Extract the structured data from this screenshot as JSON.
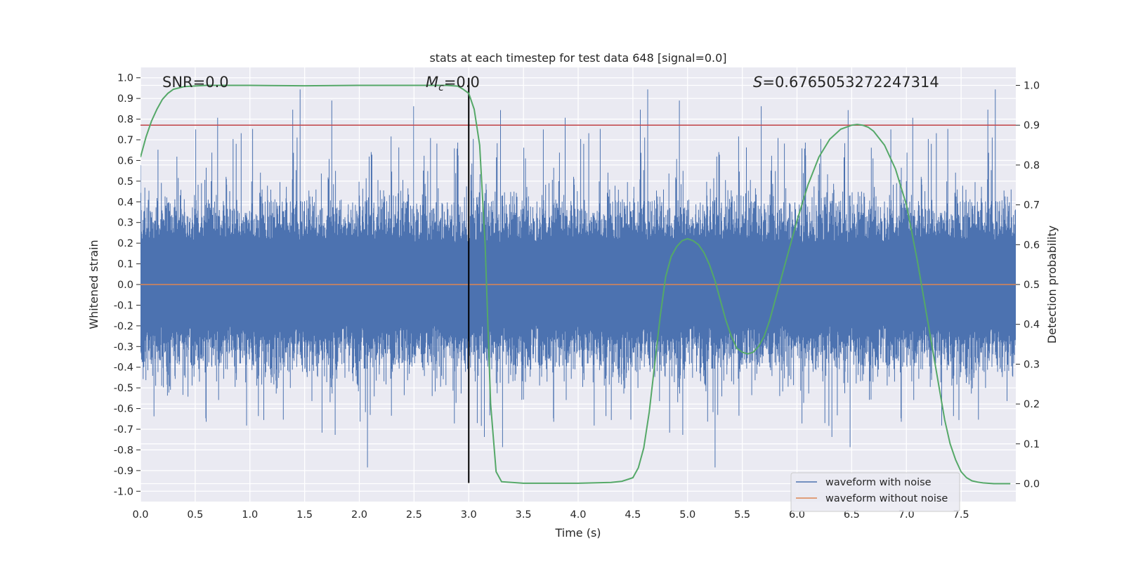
{
  "chart_data": {
    "type": "line",
    "title": "stats at each timestep for test data 648 [signal=0.0]",
    "xlabel": "Time (s)",
    "ylabel": "Whitened strain",
    "y2label": "Detection probability",
    "xlim": [
      0.0,
      8.0
    ],
    "ylim": [
      -1.05,
      1.05
    ],
    "y2lim": [
      -0.045,
      1.045
    ],
    "xticks": [
      "0.0",
      "0.5",
      "1.0",
      "1.5",
      "2.0",
      "2.5",
      "3.0",
      "3.5",
      "4.0",
      "4.5",
      "5.0",
      "5.5",
      "6.0",
      "6.5",
      "7.0",
      "7.5"
    ],
    "yticks": [
      "1.0",
      "0.9",
      "0.8",
      "0.7",
      "0.6",
      "0.5",
      "0.4",
      "0.3",
      "0.2",
      "0.1",
      "0.0",
      "-0.1",
      "-0.2",
      "-0.3",
      "-0.4",
      "-0.5",
      "-0.6",
      "-0.7",
      "-0.8",
      "-0.9",
      "-1.0"
    ],
    "y2ticks": [
      "1.0",
      "0.9",
      "0.8",
      "0.7",
      "0.6",
      "0.5",
      "0.4",
      "0.3",
      "0.2",
      "0.1",
      "0.0"
    ],
    "grid": true,
    "legend_position": "lower-right",
    "annotations": {
      "snr": "SNR=0.0",
      "mc_symbol": "M",
      "mc_sub": "c",
      "mc_value": "=0.0",
      "s_symbol": "S",
      "s_value": "=0.6765053272247314"
    },
    "series": [
      {
        "name": "waveform with noise",
        "color": "#4c72b0",
        "noise_amplitude": 0.18,
        "peak_range": [
          -0.96,
          1.0
        ]
      },
      {
        "name": "waveform without noise",
        "color": "#dd8452",
        "value": 0.0
      }
    ],
    "threshold_line": {
      "axis": "right",
      "value": 0.9,
      "color": "#c44e52"
    },
    "event_marker": {
      "x": 3.0,
      "color": "#000000",
      "y_range": [
        -0.96,
        1.0
      ]
    },
    "detection_probability": {
      "color": "#55a868",
      "x": [
        0.0,
        0.05,
        0.1,
        0.15,
        0.2,
        0.25,
        0.3,
        0.4,
        0.6,
        1.0,
        1.5,
        2.0,
        2.5,
        2.8,
        2.9,
        2.95,
        3.0,
        3.05,
        3.1,
        3.15,
        3.2,
        3.25,
        3.3,
        3.5,
        4.0,
        4.3,
        4.4,
        4.5,
        4.55,
        4.6,
        4.65,
        4.7,
        4.75,
        4.8,
        4.85,
        4.9,
        4.95,
        5.0,
        5.05,
        5.1,
        5.15,
        5.2,
        5.25,
        5.3,
        5.35,
        5.4,
        5.45,
        5.5,
        5.55,
        5.6,
        5.65,
        5.7,
        5.75,
        5.8,
        5.9,
        6.0,
        6.1,
        6.2,
        6.3,
        6.4,
        6.5,
        6.55,
        6.6,
        6.65,
        6.7,
        6.8,
        6.9,
        7.0,
        7.1,
        7.2,
        7.3,
        7.35,
        7.4,
        7.45,
        7.5,
        7.55,
        7.6,
        7.65,
        7.7,
        7.8,
        7.95
      ],
      "y": [
        0.82,
        0.87,
        0.91,
        0.94,
        0.965,
        0.98,
        0.99,
        0.997,
        1.0,
        1.0,
        0.999,
        1.0,
        1.0,
        1.0,
        0.998,
        0.99,
        0.98,
        0.94,
        0.85,
        0.6,
        0.2,
        0.03,
        0.005,
        0.001,
        0.001,
        0.003,
        0.006,
        0.015,
        0.04,
        0.09,
        0.18,
        0.3,
        0.42,
        0.52,
        0.57,
        0.595,
        0.61,
        0.615,
        0.61,
        0.6,
        0.58,
        0.55,
        0.51,
        0.46,
        0.41,
        0.37,
        0.34,
        0.33,
        0.326,
        0.33,
        0.345,
        0.37,
        0.41,
        0.46,
        0.56,
        0.66,
        0.75,
        0.82,
        0.865,
        0.89,
        0.9,
        0.902,
        0.9,
        0.895,
        0.885,
        0.85,
        0.79,
        0.7,
        0.56,
        0.4,
        0.24,
        0.16,
        0.1,
        0.06,
        0.03,
        0.015,
        0.007,
        0.004,
        0.002,
        0.0,
        0.0
      ]
    }
  }
}
